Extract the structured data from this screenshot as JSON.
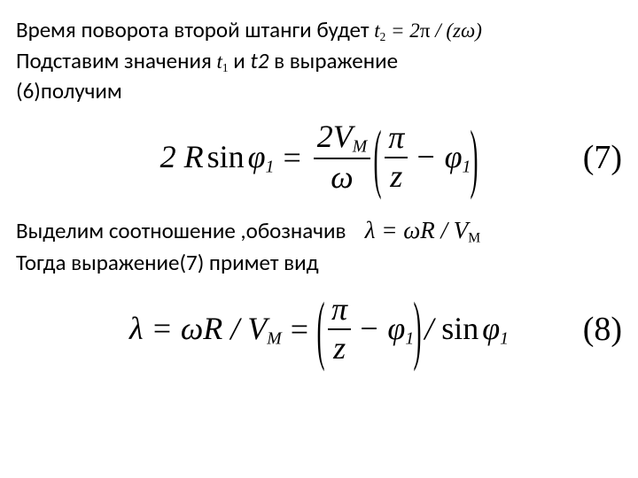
{
  "line1_pre": "Время поворота второй штанги будет",
  "line1_eq": "t<span class=\"sub2\">2</span> = 2<span class=\"math-up\">π</span> / (<span>z</span><span>ω</span>)",
  "line2_pre": "Подставим значения ",
  "line2_t1": "t<span class=\"sub2\">1</span>",
  "line2_mid": " и ",
  "line2_t2": "t<span class=\"sub2\" style=\"font-style:italic\">2</span>",
  "line2_post": " в  выражение",
  "line3": "(6)получим",
  "eq7": {
    "lhs": "2<span class=\"upright\">&nbsp;</span>R<span class=\"gap-s\"></span><span class=\"upright\">sin</span><span class=\"gap-s\"></span>φ<span class=\"sub3\">1</span>",
    "frac1_num": "2V<span class=\"sub3\">M</span>",
    "frac1_den": "ω",
    "frac2_num": "π",
    "frac2_den": "z",
    "tail": "− φ<span class=\"sub3\">1</span>",
    "num": "(7)"
  },
  "line4_pre": "Выделим соотношение ,обозначив",
  "line4_eq": "λ = ωR / V<span class=\"sub2\">M</span>",
  "line5": "Тогда выражение(7) примет вид",
  "eq8": {
    "lhs": "λ = ωR / V<span class=\"sub3\">M</span>",
    "frac_num": "π",
    "frac_den": "z",
    "mid": "− φ<span class=\"sub3\">1</span>",
    "tail": "/ <span class=\"upright\">sin</span><span class=\"gap-s\"></span>φ<span class=\"sub3\">1</span>",
    "num": "(8)"
  },
  "colors": {
    "bg": "#ffffff",
    "fg": "#000000"
  },
  "fontsizes": {
    "body": 25,
    "inline_math": 23,
    "display_math": 36,
    "eqnum": 38
  }
}
